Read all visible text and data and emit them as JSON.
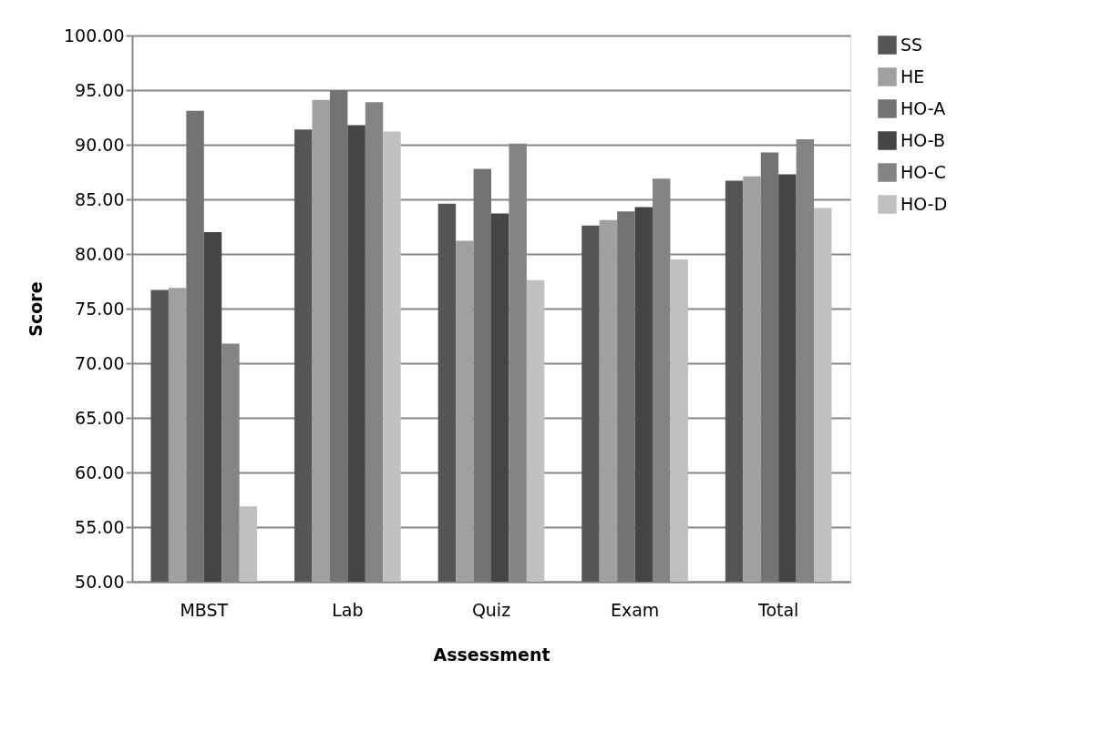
{
  "chart_data": {
    "type": "bar",
    "xlabel": "Assessment",
    "ylabel": "Score",
    "categories": [
      "MBST",
      "Lab",
      "Quiz",
      "Exam",
      "Total"
    ],
    "series": [
      {
        "name": "SS",
        "color": "#555555",
        "values": [
          76.7,
          91.4,
          84.6,
          82.6,
          86.7
        ]
      },
      {
        "name": "HE",
        "color": "#a0a0a0",
        "values": [
          76.9,
          94.1,
          81.2,
          83.1,
          87.1
        ]
      },
      {
        "name": "HO-A",
        "color": "#737373",
        "values": [
          93.1,
          95.0,
          87.8,
          83.9,
          89.3
        ]
      },
      {
        "name": "HO-B",
        "color": "#454545",
        "values": [
          82.0,
          91.8,
          83.7,
          84.3,
          87.3
        ]
      },
      {
        "name": "HO-C",
        "color": "#848484",
        "values": [
          71.8,
          93.9,
          90.1,
          86.9,
          90.5
        ]
      },
      {
        "name": "HO-D",
        "color": "#c0c0c0",
        "values": [
          56.9,
          91.2,
          77.6,
          79.5,
          84.2
        ]
      }
    ],
    "ylim": [
      50,
      100
    ],
    "yticks": [
      {
        "value": 50,
        "label": "50.00"
      },
      {
        "value": 55,
        "label": "55.00"
      },
      {
        "value": 60,
        "label": "60.00"
      },
      {
        "value": 65,
        "label": "65.00"
      },
      {
        "value": 70,
        "label": "70.00"
      },
      {
        "value": 75,
        "label": "75.00"
      },
      {
        "value": 80,
        "label": "80.00"
      },
      {
        "value": 85,
        "label": "85.00"
      },
      {
        "value": 90,
        "label": "90.00"
      },
      {
        "value": 95,
        "label": "95.00"
      },
      {
        "value": 100,
        "label": "100.00"
      }
    ],
    "grid": "y",
    "legend": "right"
  }
}
